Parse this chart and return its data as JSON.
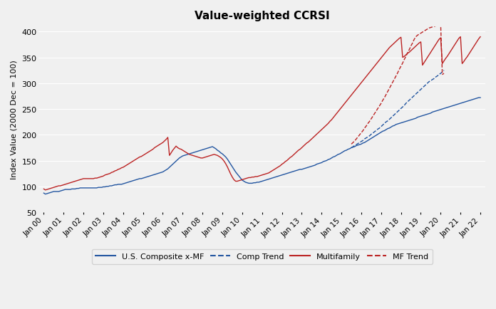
{
  "title": "Value-weighted CCRSI",
  "ylabel": "Index Value (2000 Dec = 100)",
  "ylim": [
    50,
    410
  ],
  "yticks": [
    50,
    100,
    150,
    200,
    250,
    300,
    350,
    400
  ],
  "bg_color": "#f0f0f0",
  "blue_color": "#2255a0",
  "red_color": "#bb2222",
  "legend_labels": [
    "U.S. Composite x-MF",
    "Comp Trend",
    "Multifamily",
    "MF Trend"
  ],
  "xtick_labels": [
    "Jan 00",
    "Jan 01",
    "Jan 02",
    "Jan 03",
    "Jan 04",
    "Jan 05",
    "Jan 06",
    "Jan 07",
    "Jan 08",
    "Jan 09",
    "Jan 10",
    "Jan 11",
    "Jan 12",
    "Jan 13",
    "Jan 14",
    "Jan 15",
    "Jan 16",
    "Jan 17",
    "Jan 18",
    "Jan 19",
    "Jan 20",
    "Jan 21",
    "Jan 22"
  ],
  "n_months": 265,
  "composite_xmf": [
    87,
    85,
    86,
    87,
    88,
    89,
    90,
    90,
    90,
    90,
    91,
    92,
    93,
    94,
    94,
    94,
    94,
    95,
    95,
    95,
    96,
    96,
    97,
    97,
    97,
    97,
    97,
    97,
    97,
    97,
    97,
    97,
    97,
    98,
    98,
    98,
    99,
    99,
    100,
    100,
    101,
    101,
    102,
    103,
    103,
    104,
    104,
    104,
    105,
    106,
    107,
    108,
    109,
    110,
    111,
    112,
    113,
    114,
    115,
    115,
    116,
    117,
    118,
    119,
    120,
    121,
    122,
    123,
    124,
    125,
    126,
    127,
    128,
    130,
    132,
    134,
    137,
    140,
    143,
    146,
    149,
    152,
    155,
    157,
    159,
    160,
    161,
    162,
    163,
    164,
    165,
    166,
    167,
    168,
    169,
    170,
    171,
    172,
    173,
    174,
    175,
    176,
    177,
    175,
    173,
    170,
    168,
    165,
    163,
    160,
    157,
    153,
    148,
    143,
    138,
    133,
    128,
    124,
    120,
    116,
    112,
    110,
    108,
    107,
    106,
    106,
    106,
    107,
    107,
    108,
    108,
    109,
    110,
    111,
    112,
    113,
    114,
    115,
    116,
    117,
    118,
    119,
    120,
    121,
    122,
    123,
    124,
    125,
    126,
    127,
    128,
    129,
    130,
    131,
    132,
    133,
    133,
    134,
    135,
    136,
    137,
    138,
    139,
    140,
    141,
    143,
    144,
    145,
    146,
    148,
    149,
    150,
    152,
    153,
    155,
    157,
    158,
    160,
    162,
    163,
    165,
    167,
    169,
    170,
    172,
    173,
    175,
    176,
    177,
    179,
    180,
    181,
    182,
    184,
    185,
    187,
    189,
    191,
    193,
    195,
    197,
    199,
    201,
    203,
    205,
    207,
    208,
    210,
    212,
    213,
    215,
    217,
    218,
    220,
    221,
    222,
    223,
    224,
    225,
    226,
    227,
    228,
    229,
    230,
    231,
    232,
    234,
    235,
    236,
    237,
    238,
    239,
    240,
    241,
    242,
    244,
    245,
    246,
    247,
    248,
    249,
    250,
    251,
    252,
    253,
    254,
    255,
    256,
    257,
    258,
    259,
    260,
    261,
    262,
    263,
    264,
    265,
    266,
    267,
    268,
    269,
    270,
    271,
    272,
    272
  ],
  "comp_trend": [
    null,
    null,
    null,
    null,
    null,
    null,
    null,
    null,
    null,
    null,
    null,
    null,
    null,
    null,
    null,
    null,
    null,
    null,
    null,
    null,
    null,
    null,
    null,
    null,
    null,
    null,
    null,
    null,
    null,
    null,
    null,
    null,
    null,
    null,
    null,
    null,
    null,
    null,
    null,
    null,
    null,
    null,
    null,
    null,
    null,
    null,
    null,
    null,
    null,
    null,
    null,
    null,
    null,
    null,
    null,
    null,
    null,
    null,
    null,
    null,
    null,
    null,
    null,
    null,
    null,
    null,
    null,
    null,
    null,
    null,
    null,
    null,
    null,
    null,
    null,
    null,
    null,
    null,
    null,
    null,
    null,
    null,
    null,
    null,
    null,
    null,
    null,
    null,
    null,
    null,
    null,
    null,
    null,
    null,
    null,
    null,
    null,
    null,
    null,
    null,
    null,
    null,
    null,
    null,
    null,
    null,
    null,
    null,
    null,
    null,
    null,
    null,
    null,
    null,
    null,
    null,
    null,
    null,
    null,
    null,
    null,
    null,
    null,
    null,
    null,
    null,
    null,
    null,
    null,
    null,
    null,
    null,
    null,
    null,
    null,
    null,
    null,
    null,
    null,
    null,
    null,
    null,
    null,
    null,
    null,
    null,
    null,
    null,
    null,
    null,
    null,
    null,
    null,
    null,
    null,
    null,
    null,
    null,
    null,
    null,
    null,
    null,
    null,
    null,
    null,
    null,
    null,
    null,
    null,
    null,
    null,
    null,
    null,
    null,
    null,
    null,
    null,
    null,
    null,
    null,
    null,
    null,
    null,
    null,
    null,
    null,
    175,
    177,
    179,
    181,
    183,
    185,
    187,
    189,
    192,
    194,
    196,
    198,
    201,
    203,
    206,
    208,
    211,
    213,
    216,
    219,
    222,
    225,
    227,
    230,
    233,
    236,
    239,
    242,
    245,
    248,
    251,
    254,
    257,
    261,
    264,
    267,
    270,
    273,
    276,
    279,
    282,
    285,
    288,
    291,
    294,
    297,
    300,
    303,
    305,
    307,
    309,
    312,
    314,
    317,
    319,
    322,
    325
  ],
  "multifamily": [
    95,
    93,
    94,
    95,
    96,
    97,
    98,
    99,
    100,
    101,
    101,
    102,
    103,
    104,
    105,
    106,
    107,
    108,
    109,
    110,
    111,
    112,
    113,
    114,
    115,
    115,
    115,
    115,
    115,
    115,
    115,
    116,
    116,
    117,
    118,
    119,
    120,
    122,
    123,
    124,
    125,
    127,
    128,
    130,
    131,
    133,
    134,
    136,
    137,
    139,
    141,
    143,
    145,
    147,
    149,
    151,
    153,
    155,
    157,
    158,
    160,
    162,
    164,
    166,
    168,
    170,
    172,
    175,
    177,
    179,
    181,
    183,
    185,
    188,
    191,
    195,
    160,
    165,
    170,
    174,
    178,
    175,
    173,
    172,
    170,
    168,
    166,
    164,
    162,
    161,
    160,
    159,
    158,
    157,
    156,
    155,
    155,
    156,
    157,
    158,
    159,
    160,
    161,
    162,
    161,
    160,
    158,
    156,
    153,
    149,
    144,
    138,
    131,
    124,
    118,
    113,
    110,
    110,
    111,
    112,
    113,
    114,
    115,
    116,
    117,
    117,
    118,
    118,
    119,
    119,
    120,
    121,
    122,
    123,
    124,
    125,
    126,
    128,
    130,
    132,
    134,
    136,
    138,
    140,
    143,
    145,
    148,
    150,
    153,
    156,
    158,
    161,
    164,
    167,
    170,
    172,
    175,
    178,
    181,
    184,
    186,
    189,
    192,
    195,
    198,
    201,
    204,
    207,
    210,
    213,
    216,
    219,
    222,
    226,
    229,
    233,
    237,
    241,
    245,
    249,
    253,
    257,
    261,
    265,
    269,
    273,
    277,
    281,
    285,
    289,
    293,
    297,
    301,
    305,
    309,
    313,
    317,
    321,
    325,
    329,
    333,
    337,
    341,
    345,
    349,
    353,
    357,
    361,
    365,
    369,
    372,
    375,
    378,
    381,
    384,
    387,
    389,
    350,
    352,
    355,
    358,
    360,
    363,
    366,
    369,
    372,
    375,
    378,
    380,
    335,
    340,
    345,
    350,
    355,
    360,
    365,
    370,
    375,
    380,
    385,
    388,
    338,
    343,
    348,
    352,
    357,
    362,
    367,
    372,
    377,
    382,
    387,
    390,
    338,
    342,
    347,
    351,
    356,
    361,
    366,
    371,
    376,
    381,
    386,
    390
  ],
  "mf_trend": [
    null,
    null,
    null,
    null,
    null,
    null,
    null,
    null,
    null,
    null,
    null,
    null,
    null,
    null,
    null,
    null,
    null,
    null,
    null,
    null,
    null,
    null,
    null,
    null,
    null,
    null,
    null,
    null,
    null,
    null,
    null,
    null,
    null,
    null,
    null,
    null,
    null,
    null,
    null,
    null,
    null,
    null,
    null,
    null,
    null,
    null,
    null,
    null,
    null,
    null,
    null,
    null,
    null,
    null,
    null,
    null,
    null,
    null,
    null,
    null,
    null,
    null,
    null,
    null,
    null,
    null,
    null,
    null,
    null,
    null,
    null,
    null,
    null,
    null,
    null,
    null,
    null,
    null,
    null,
    null,
    null,
    null,
    null,
    null,
    null,
    null,
    null,
    null,
    null,
    null,
    null,
    null,
    null,
    null,
    null,
    null,
    null,
    null,
    null,
    null,
    null,
    null,
    null,
    null,
    null,
    null,
    null,
    null,
    null,
    null,
    null,
    null,
    null,
    null,
    null,
    null,
    null,
    null,
    null,
    null,
    null,
    null,
    null,
    null,
    null,
    null,
    null,
    null,
    null,
    null,
    null,
    null,
    null,
    null,
    null,
    null,
    null,
    null,
    null,
    null,
    null,
    null,
    null,
    null,
    null,
    null,
    null,
    null,
    null,
    null,
    null,
    null,
    null,
    null,
    null,
    null,
    null,
    null,
    null,
    null,
    null,
    null,
    null,
    null,
    null,
    null,
    null,
    null,
    null,
    null,
    null,
    null,
    null,
    null,
    null,
    null,
    null,
    null,
    null,
    null,
    null,
    null,
    null,
    null,
    null,
    null,
    182,
    185,
    188,
    192,
    196,
    200,
    204,
    208,
    213,
    217,
    222,
    226,
    231,
    236,
    241,
    246,
    251,
    256,
    261,
    267,
    272,
    278,
    284,
    290,
    296,
    302,
    308,
    314,
    320,
    327,
    333,
    339,
    346,
    352,
    359,
    365,
    372,
    378,
    385,
    390,
    393,
    395,
    397,
    399,
    401,
    403,
    405,
    407,
    408,
    409,
    410,
    411,
    412,
    413,
    415,
    317,
    319
  ]
}
